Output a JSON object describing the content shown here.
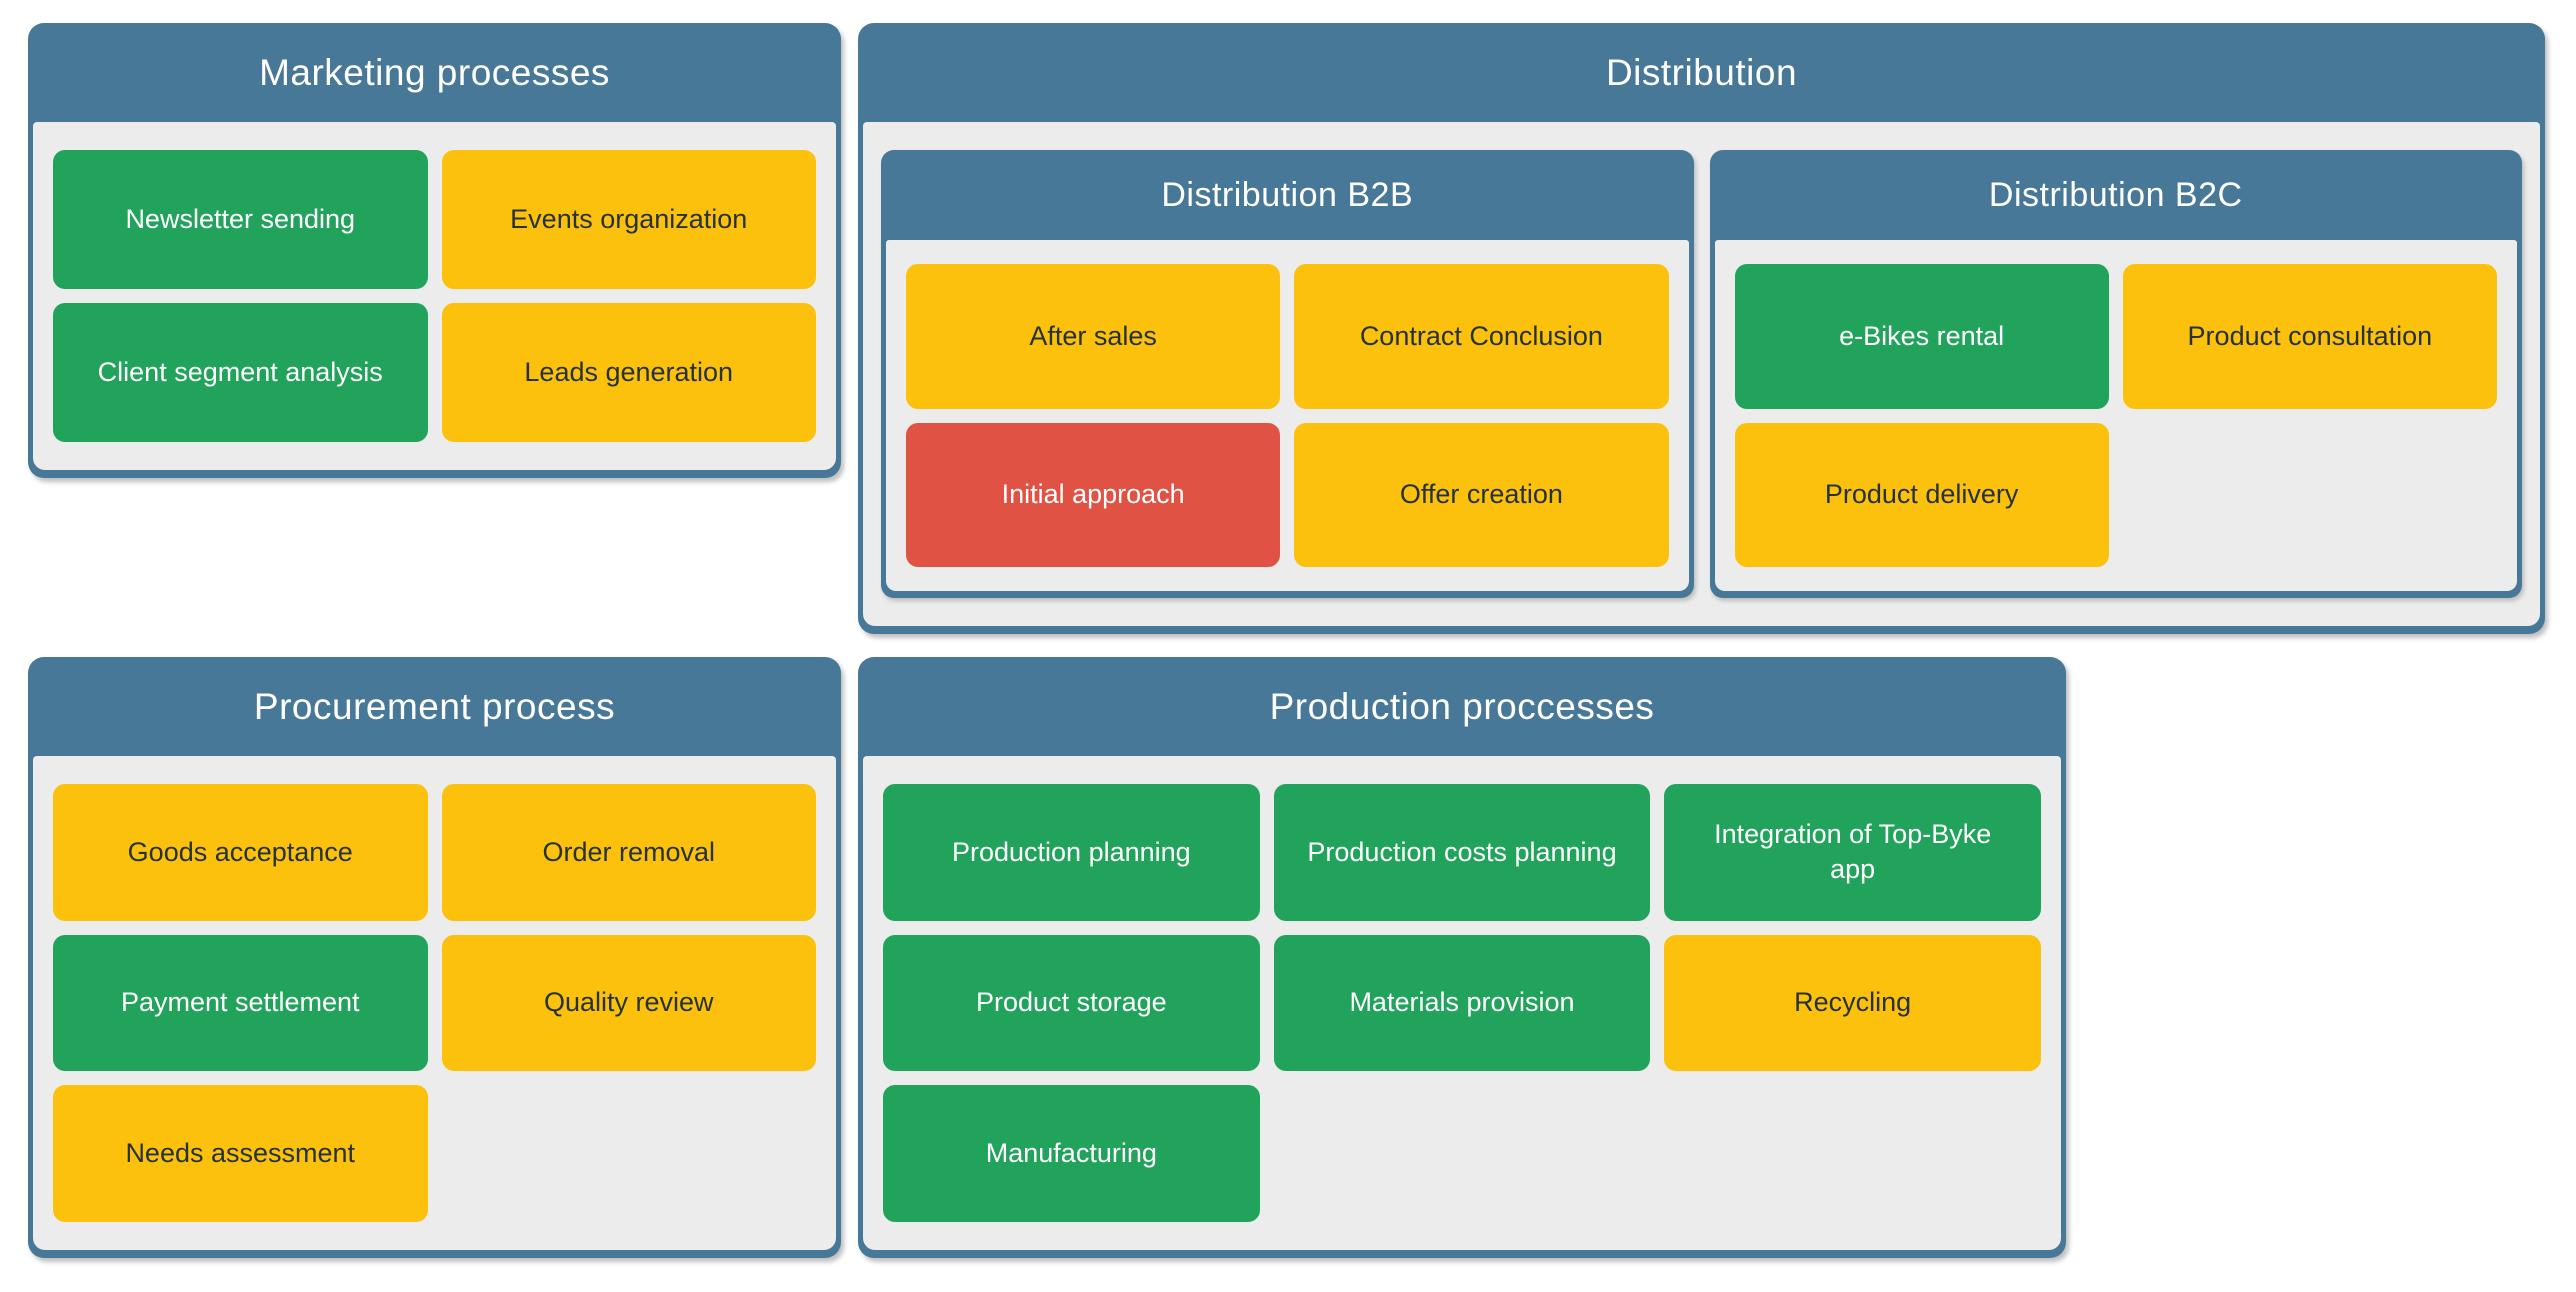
{
  "colors": {
    "header_blue": "#487897",
    "green": "#21A35C",
    "yellow": "#FCC10D",
    "red": "#DF5244",
    "body_gray": "#ECECEC",
    "dark_text": "#263238",
    "light_text": "#FFFFFF",
    "page_bg": "#FFFFFF"
  },
  "groups": [
    {
      "title": "Marketing processes",
      "tiles": [
        {
          "label": "Newsletter sending",
          "color": "green"
        },
        {
          "label": "Events organization",
          "color": "yellow"
        },
        {
          "label": "Client segment analysis",
          "color": "green"
        },
        {
          "label": "Leads generation",
          "color": "yellow"
        }
      ]
    },
    {
      "title": "Distribution",
      "subgroups": [
        {
          "title": "Distribution B2B",
          "tiles": [
            {
              "label": "After sales",
              "color": "yellow"
            },
            {
              "label": "Contract Conclusion",
              "color": "yellow"
            },
            {
              "label": "Initial approach",
              "color": "red"
            },
            {
              "label": "Offer creation",
              "color": "yellow"
            }
          ]
        },
        {
          "title": "Distribution B2C",
          "tiles": [
            {
              "label": "e-Bikes rental",
              "color": "green"
            },
            {
              "label": "Product consultation",
              "color": "yellow"
            },
            {
              "label": "Product delivery",
              "color": "yellow"
            }
          ]
        }
      ]
    },
    {
      "title": "Procurement process",
      "tiles": [
        {
          "label": "Goods acceptance",
          "color": "yellow"
        },
        {
          "label": "Order removal",
          "color": "yellow"
        },
        {
          "label": "Payment settlement",
          "color": "green"
        },
        {
          "label": "Quality review",
          "color": "yellow"
        },
        {
          "label": "Needs assessment",
          "color": "yellow"
        }
      ]
    },
    {
      "title": "Production proccesses",
      "tiles": [
        {
          "label": "Production planning",
          "color": "green"
        },
        {
          "label": "Production costs planning",
          "color": "green"
        },
        {
          "label": "Integration of Top-Byke app",
          "color": "green"
        },
        {
          "label": "Product storage",
          "color": "green"
        },
        {
          "label": "Materials provision",
          "color": "green"
        },
        {
          "label": "Recycling",
          "color": "yellow"
        },
        {
          "label": "Manufacturing",
          "color": "green"
        }
      ]
    }
  ]
}
